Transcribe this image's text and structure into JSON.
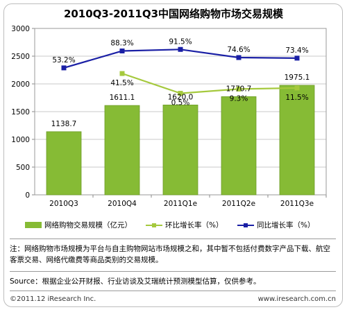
{
  "chart_data": {
    "type": "bar",
    "title": "2010Q3-2011Q3中国网络购物市场交易规模",
    "categories": [
      "2010Q3",
      "2010Q4",
      "2011Q1e",
      "2011Q2e",
      "2011Q3e"
    ],
    "ylim": [
      0,
      3000
    ],
    "yticks": [
      0,
      500,
      1000,
      1500,
      2000,
      2500,
      3000
    ],
    "grid": true,
    "series": [
      {
        "name": "网络购物交易规模（亿元）",
        "type": "bar",
        "values": [
          1138.7,
          1611.1,
          1620.0,
          1770.7,
          1975.1
        ],
        "labels": [
          "1138.7",
          "1611.1",
          "1620.0",
          "1770.7",
          "1975.1"
        ],
        "color": "#86bb35"
      },
      {
        "name": "环比增长率（%）",
        "type": "line",
        "values": [
          null,
          41.5,
          0.5,
          9.3,
          11.5
        ],
        "labels": [
          "",
          "41.5%",
          "0.5%",
          "9.3%",
          "11.5%"
        ],
        "color": "#a5c93d"
      },
      {
        "name": "同比增长率（%）",
        "type": "line",
        "values": [
          53.2,
          88.3,
          91.5,
          74.6,
          73.4
        ],
        "labels": [
          "53.2%",
          "88.3%",
          "91.5%",
          "74.6%",
          "73.4%"
        ],
        "color": "#1a1fa5"
      }
    ],
    "legend_position": "bottom"
  },
  "note": "注：网络购物市场规模为平台与自主购物网站市场规模之和，其中暂不包括付费数字产品下载、航空客票交易、网络代缴费等商品类别的交易规模。",
  "source": "Source：根据企业公开财报、行业访谈及艾瑞统计预测模型估算，仅供参考。",
  "copyright": "©2011.12 iResearch Inc.",
  "website": "www.iresearch.com.cn"
}
